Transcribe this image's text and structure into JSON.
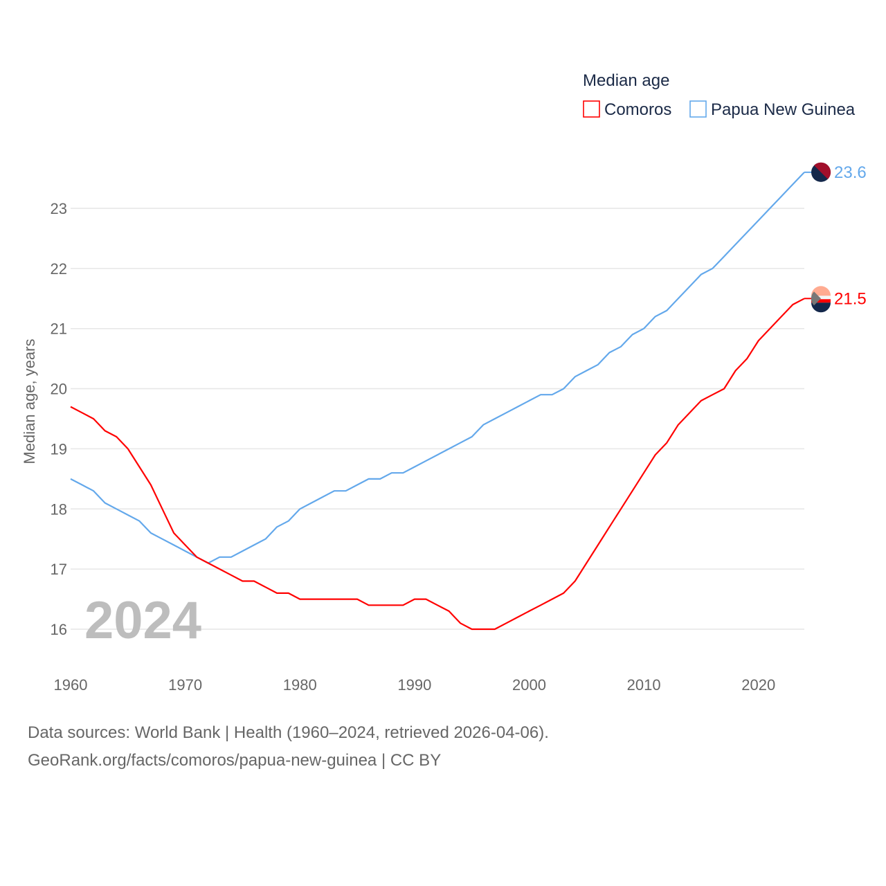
{
  "chart_data": {
    "type": "line",
    "title": "Median age",
    "xlabel": "",
    "ylabel": "Median age, years",
    "xlim": [
      1960,
      2024
    ],
    "ylim": [
      15.5,
      23.8
    ],
    "x_ticks": [
      1960,
      1970,
      1980,
      1990,
      2000,
      2010,
      2020
    ],
    "y_ticks": [
      16,
      17,
      18,
      19,
      20,
      21,
      22,
      23
    ],
    "grid": true,
    "legend_position": "top-right",
    "year_label": "2024",
    "x": [
      1960,
      1961,
      1962,
      1963,
      1964,
      1965,
      1966,
      1967,
      1968,
      1969,
      1970,
      1971,
      1972,
      1973,
      1974,
      1975,
      1976,
      1977,
      1978,
      1979,
      1980,
      1981,
      1982,
      1983,
      1984,
      1985,
      1986,
      1987,
      1988,
      1989,
      1990,
      1991,
      1992,
      1993,
      1994,
      1995,
      1996,
      1997,
      1998,
      1999,
      2000,
      2001,
      2002,
      2003,
      2004,
      2005,
      2006,
      2007,
      2008,
      2009,
      2010,
      2011,
      2012,
      2013,
      2014,
      2015,
      2016,
      2017,
      2018,
      2019,
      2020,
      2021,
      2022,
      2023,
      2024
    ],
    "series": [
      {
        "name": "Comoros",
        "color": "#ff0000",
        "end_label": "21.5",
        "values": [
          19.7,
          19.6,
          19.5,
          19.3,
          19.2,
          19.0,
          18.7,
          18.4,
          18.0,
          17.6,
          17.4,
          17.2,
          17.1,
          17.0,
          16.9,
          16.8,
          16.8,
          16.7,
          16.6,
          16.6,
          16.5,
          16.5,
          16.5,
          16.5,
          16.5,
          16.5,
          16.4,
          16.4,
          16.4,
          16.4,
          16.5,
          16.5,
          16.4,
          16.3,
          16.1,
          16.0,
          16.0,
          16.0,
          16.1,
          16.2,
          16.3,
          16.4,
          16.5,
          16.6,
          16.8,
          17.1,
          17.4,
          17.7,
          18.0,
          18.3,
          18.6,
          18.9,
          19.1,
          19.4,
          19.6,
          19.8,
          19.9,
          20.0,
          20.3,
          20.5,
          20.8,
          21.0,
          21.2,
          21.4,
          21.5
        ]
      },
      {
        "name": "Papua New Guinea",
        "color": "#63a8eb",
        "end_label": "23.6",
        "values": [
          18.5,
          18.4,
          18.3,
          18.1,
          18.0,
          17.9,
          17.8,
          17.6,
          17.5,
          17.4,
          17.3,
          17.2,
          17.1,
          17.2,
          17.2,
          17.3,
          17.4,
          17.5,
          17.7,
          17.8,
          18.0,
          18.1,
          18.2,
          18.3,
          18.3,
          18.4,
          18.5,
          18.5,
          18.6,
          18.6,
          18.7,
          18.8,
          18.9,
          19.0,
          19.1,
          19.2,
          19.4,
          19.5,
          19.6,
          19.7,
          19.8,
          19.9,
          19.9,
          20.0,
          20.2,
          20.3,
          20.4,
          20.6,
          20.7,
          20.9,
          21.0,
          21.2,
          21.3,
          21.5,
          21.7,
          21.9,
          22.0,
          22.2,
          22.4,
          22.6,
          22.8,
          23.0,
          23.2,
          23.4,
          23.6
        ]
      }
    ]
  },
  "footer": {
    "line1": "Data sources: World Bank | Health (1960–2024, retrieved 2026-04-06).",
    "line2": "GeoRank.org/facts/comoros/papua-new-guinea | CC BY"
  }
}
